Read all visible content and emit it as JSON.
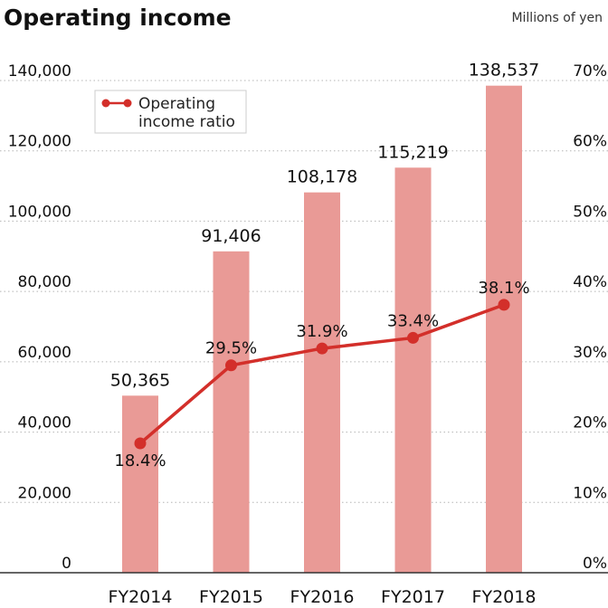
{
  "chart_data": {
    "type": "bar",
    "title": "Operating income",
    "unit_label": "Millions of yen",
    "categories": [
      "FY2014",
      "FY2015",
      "FY2016",
      "FY2017",
      "FY2018"
    ],
    "series": [
      {
        "type": "bar",
        "axis": "left",
        "values": [
          50365,
          91406,
          108178,
          115219,
          138537
        ],
        "value_labels": [
          "50,365",
          "91,406",
          "108,178",
          "115,219",
          "138,537"
        ]
      },
      {
        "name": "Operating income ratio",
        "type": "line",
        "axis": "right",
        "values": [
          18.4,
          29.5,
          31.9,
          33.4,
          38.1
        ],
        "value_labels": [
          "18.4%",
          "29.5%",
          "31.9%",
          "33.4%",
          "38.1%"
        ]
      }
    ],
    "left_axis": {
      "ylim": [
        0,
        140000
      ],
      "ticks": [
        0,
        20000,
        40000,
        60000,
        80000,
        100000,
        120000,
        140000
      ],
      "tick_labels": [
        "0",
        "20,000",
        "40,000",
        "60,000",
        "80,000",
        "100,000",
        "120,000",
        "140,000"
      ]
    },
    "right_axis": {
      "ylim": [
        0,
        70
      ],
      "ticks": [
        0,
        10,
        20,
        30,
        40,
        50,
        60,
        70
      ],
      "tick_labels": [
        "0%",
        "10%",
        "20%",
        "30%",
        "40%",
        "50%",
        "60%",
        "70%"
      ]
    },
    "legend": {
      "placement": "top-left",
      "label_lines": [
        "Operating",
        "income ratio"
      ]
    },
    "grid": true,
    "colors": {
      "bar": "#e99a96",
      "line": "#d32f2a",
      "grid": "#b5b5b5",
      "axis": "#333333"
    }
  }
}
